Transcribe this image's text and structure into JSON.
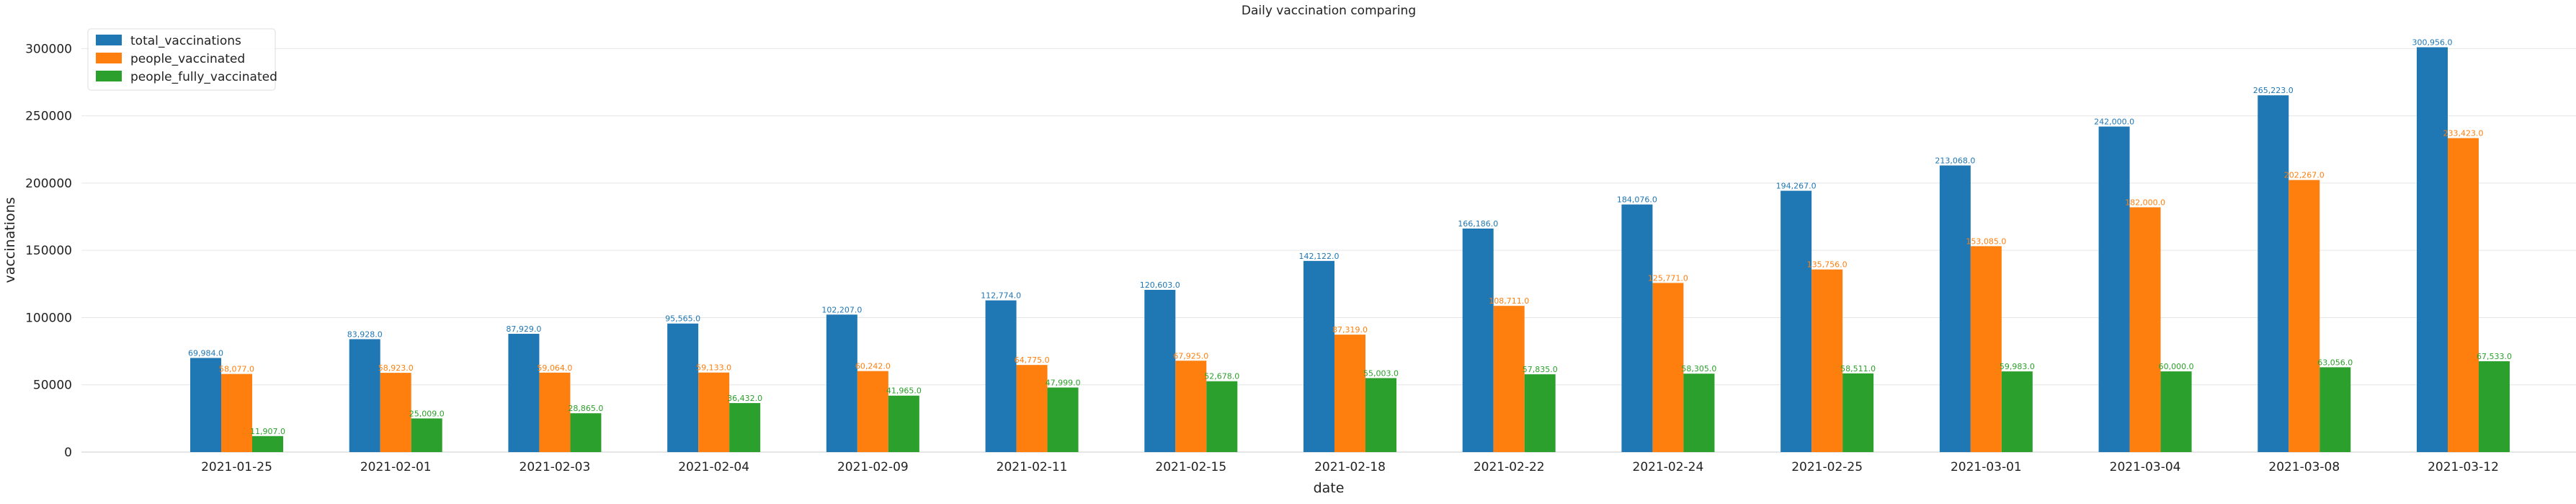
{
  "chart_data": {
    "type": "bar",
    "title": "Daily vaccination comparing",
    "xlabel": "date",
    "ylabel": "vaccinations",
    "ylim": [
      0,
      320000
    ],
    "yticks": [
      "0",
      "50000",
      "100000",
      "150000",
      "200000",
      "250000",
      "300000"
    ],
    "ytick_values": [
      0,
      50000,
      100000,
      150000,
      200000,
      250000,
      300000
    ],
    "grid": "horizontal, light",
    "legend_position": "top-left",
    "categories": [
      "2021-01-25",
      "2021-02-01",
      "2021-02-03",
      "2021-02-04",
      "2021-02-09",
      "2021-02-11",
      "2021-02-15",
      "2021-02-18",
      "2021-02-22",
      "2021-02-24",
      "2021-02-25",
      "2021-03-01",
      "2021-03-04",
      "2021-03-08",
      "2021-03-12"
    ],
    "series": [
      {
        "name": "total_vaccinations",
        "color": "#1f77b4",
        "values": [
          69984,
          83928,
          87929,
          95565,
          102207,
          112774,
          120603,
          142122,
          166186,
          184076,
          194267,
          213068,
          242000,
          265223,
          300956
        ],
        "labels": [
          "69,984.0",
          "83,928.0",
          "87,929.0",
          "95,565.0",
          "102,207.0",
          "112,774.0",
          "120,603.0",
          "142,122.0",
          "166,186.0",
          "184,076.0",
          "194,267.0",
          "213,068.0",
          "242,000.0",
          "265,223.0",
          "300,956.0"
        ]
      },
      {
        "name": "people_vaccinated",
        "color": "#ff7f0e",
        "values": [
          58077,
          58923,
          59064,
          59133,
          60242,
          64775,
          67925,
          87319,
          108711,
          125771,
          135756,
          153085,
          182000,
          202267,
          233423
        ],
        "labels": [
          "58,077.0",
          "58,923.0",
          "59,064.0",
          "59,133.0",
          "60,242.0",
          "64,775.0",
          "67,925.0",
          "87,319.0",
          "108,711.0",
          "125,771.0",
          "135,756.0",
          "153,085.0",
          "182,000.0",
          "202,267.0",
          "233,423.0"
        ]
      },
      {
        "name": "people_fully_vaccinated",
        "color": "#2ca02c",
        "values": [
          11907,
          25009,
          28865,
          36432,
          41965,
          47999,
          52678,
          55003,
          57835,
          58305,
          58511,
          59983,
          60000,
          63056,
          67533
        ],
        "labels": [
          "11,907.0",
          "25,009.0",
          "28,865.0",
          "36,432.0",
          "41,965.0",
          "47,999.0",
          "52,678.0",
          "55,003.0",
          "57,835.0",
          "58,305.0",
          "58,511.0",
          "59,983.0",
          "60,000.0",
          "63,056.0",
          "67,533.0"
        ]
      }
    ]
  }
}
